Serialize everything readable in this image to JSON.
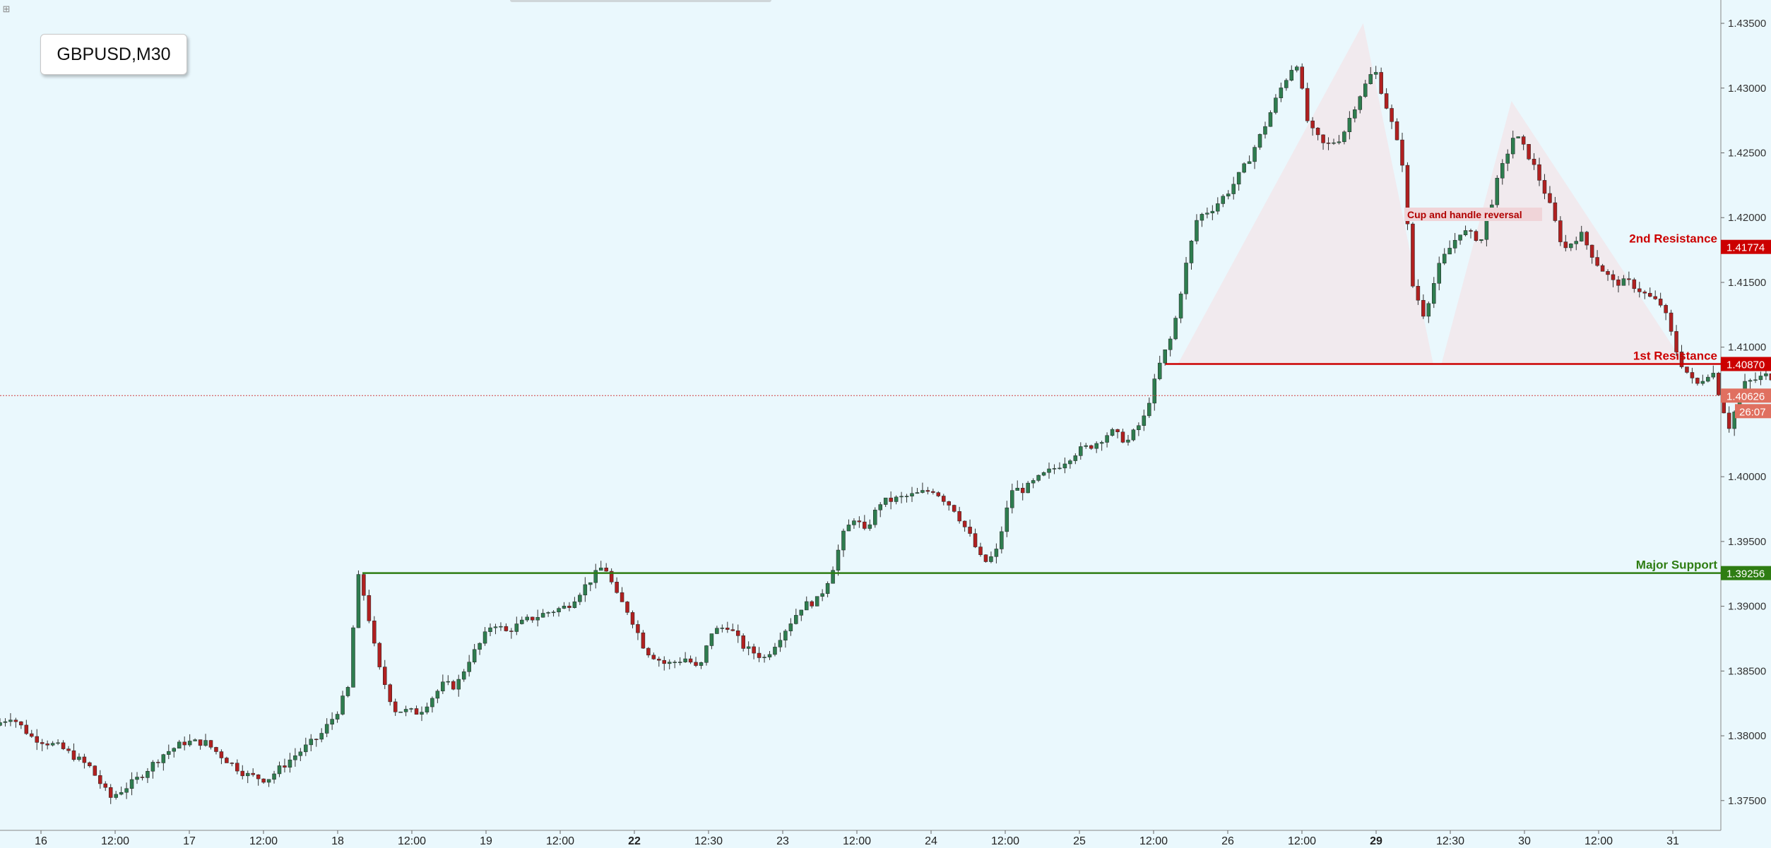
{
  "symbol": "GBPUSD,M30",
  "chart_data": {
    "type": "candlestick",
    "title": "GBPUSD,M30",
    "ylim": [
      1.3727,
      1.4368
    ],
    "y_ticks": [
      "1.43500",
      "1.43000",
      "1.42500",
      "1.42000",
      "1.41500",
      "1.41000",
      "1.40000",
      "1.39500",
      "1.39000",
      "1.38500",
      "1.38000",
      "1.37500"
    ],
    "y_tick_values": [
      1.435,
      1.43,
      1.425,
      1.42,
      1.415,
      1.41,
      1.4,
      1.395,
      1.39,
      1.385,
      1.38,
      1.375
    ],
    "x_ticks": [
      "16",
      "12:00",
      "17",
      "12:00",
      "18",
      "12:00",
      "19",
      "12:00",
      "22",
      "12:30",
      "23",
      "12:00",
      "24",
      "12:00",
      "25",
      "12:00",
      "26",
      "12:00",
      "29",
      "12:30",
      "30",
      "12:00",
      "31"
    ],
    "x_bold_ticks": [
      "22",
      "29"
    ],
    "price_path": [
      [
        0,
        1.3808
      ],
      [
        0.4,
        1.3815
      ],
      [
        0.9,
        1.3799
      ],
      [
        1.6,
        1.3791
      ],
      [
        2.3,
        1.3776
      ],
      [
        2.8,
        1.3752
      ],
      [
        3.4,
        1.3765
      ],
      [
        4.1,
        1.3786
      ],
      [
        4.6,
        1.3795
      ],
      [
        5.1,
        1.3795
      ],
      [
        5.6,
        1.3782
      ],
      [
        6.1,
        1.377
      ],
      [
        6.6,
        1.3766
      ],
      [
        7.3,
        1.3785
      ],
      [
        7.9,
        1.38
      ],
      [
        8.3,
        1.3818
      ],
      [
        8.6,
        1.3838
      ],
      [
        8.8,
        1.3925
      ],
      [
        9.0,
        1.3905
      ],
      [
        9.3,
        1.3855
      ],
      [
        9.7,
        1.382
      ],
      [
        10.3,
        1.3818
      ],
      [
        10.9,
        1.384
      ],
      [
        11.2,
        1.3838
      ],
      [
        11.5,
        1.3858
      ],
      [
        11.8,
        1.3872
      ],
      [
        12.1,
        1.3888
      ],
      [
        12.4,
        1.388
      ],
      [
        12.9,
        1.3889
      ],
      [
        13.4,
        1.3895
      ],
      [
        13.9,
        1.39
      ],
      [
        14.4,
        1.3918
      ],
      [
        14.8,
        1.3932
      ],
      [
        15.1,
        1.3908
      ],
      [
        15.4,
        1.3895
      ],
      [
        15.8,
        1.3866
      ],
      [
        16.3,
        1.3855
      ],
      [
        16.8,
        1.386
      ],
      [
        17.1,
        1.385
      ],
      [
        17.4,
        1.388
      ],
      [
        17.8,
        1.3885
      ],
      [
        18.2,
        1.3868
      ],
      [
        18.7,
        1.386
      ],
      [
        19.1,
        1.3878
      ],
      [
        19.6,
        1.39
      ],
      [
        20.0,
        1.3905
      ],
      [
        20.3,
        1.3925
      ],
      [
        20.6,
        1.3955
      ],
      [
        20.9,
        1.397
      ],
      [
        21.1,
        1.3956
      ],
      [
        21.5,
        1.398
      ],
      [
        22.2,
        1.3985
      ],
      [
        22.8,
        1.399
      ],
      [
        23.3,
        1.3975
      ],
      [
        23.7,
        1.3953
      ],
      [
        24.0,
        1.3933
      ],
      [
        24.3,
        1.394
      ],
      [
        24.7,
        1.399
      ],
      [
        25.0,
        1.399
      ],
      [
        25.4,
        1.4
      ],
      [
        25.9,
        1.401
      ],
      [
        26.3,
        1.402
      ],
      [
        26.7,
        1.4025
      ],
      [
        27.1,
        1.4035
      ],
      [
        27.5,
        1.4027
      ],
      [
        27.9,
        1.4045
      ],
      [
        28.3,
        1.4088
      ],
      [
        28.6,
        1.411
      ],
      [
        28.9,
        1.416
      ],
      [
        29.2,
        1.42
      ],
      [
        29.6,
        1.4208
      ],
      [
        30.0,
        1.4222
      ],
      [
        30.4,
        1.4242
      ],
      [
        30.8,
        1.4268
      ],
      [
        31.2,
        1.4298
      ],
      [
        31.6,
        1.4322
      ],
      [
        31.9,
        1.427
      ],
      [
        32.3,
        1.4255
      ],
      [
        32.7,
        1.4262
      ],
      [
        33.1,
        1.4292
      ],
      [
        33.5,
        1.4315
      ],
      [
        33.9,
        1.4275
      ],
      [
        34.2,
        1.424
      ],
      [
        34.4,
        1.415
      ],
      [
        34.7,
        1.4125
      ],
      [
        35.1,
        1.4165
      ],
      [
        35.6,
        1.419
      ],
      [
        36.1,
        1.4183
      ],
      [
        36.5,
        1.423
      ],
      [
        36.9,
        1.4265
      ],
      [
        37.3,
        1.4245
      ],
      [
        37.7,
        1.4215
      ],
      [
        38.1,
        1.4175
      ],
      [
        38.5,
        1.4188
      ],
      [
        38.9,
        1.4165
      ],
      [
        39.3,
        1.415
      ],
      [
        39.7,
        1.415
      ],
      [
        40.1,
        1.414
      ],
      [
        40.5,
        1.4132
      ],
      [
        40.9,
        1.409
      ],
      [
        41.3,
        1.407
      ],
      [
        41.7,
        1.4083
      ],
      [
        42.1,
        1.4038
      ],
      [
        42.5,
        1.4072
      ],
      [
        43.0,
        1.4078
      ],
      [
        43.5,
        1.4075
      ],
      [
        43.8,
        1.4063
      ]
    ],
    "current_price": "1.40626",
    "countdown": "26:07",
    "levels": [
      {
        "name": "2nd Resistance",
        "value": "1.41774",
        "color": "#cc0000"
      },
      {
        "name": "1st Resistance",
        "value": "1.40870",
        "color": "#cc0000"
      },
      {
        "name": "Major Support",
        "value": "1.39256",
        "color": "#2e7d13"
      }
    ],
    "annotations": {
      "pattern": "Cup and handle reversal"
    },
    "colors": {
      "background": "#eaf8fd",
      "bull": "#2e7d4f",
      "bear": "#b02020",
      "wick": "#303030",
      "pattern_fill": "#f2e8ec"
    }
  }
}
